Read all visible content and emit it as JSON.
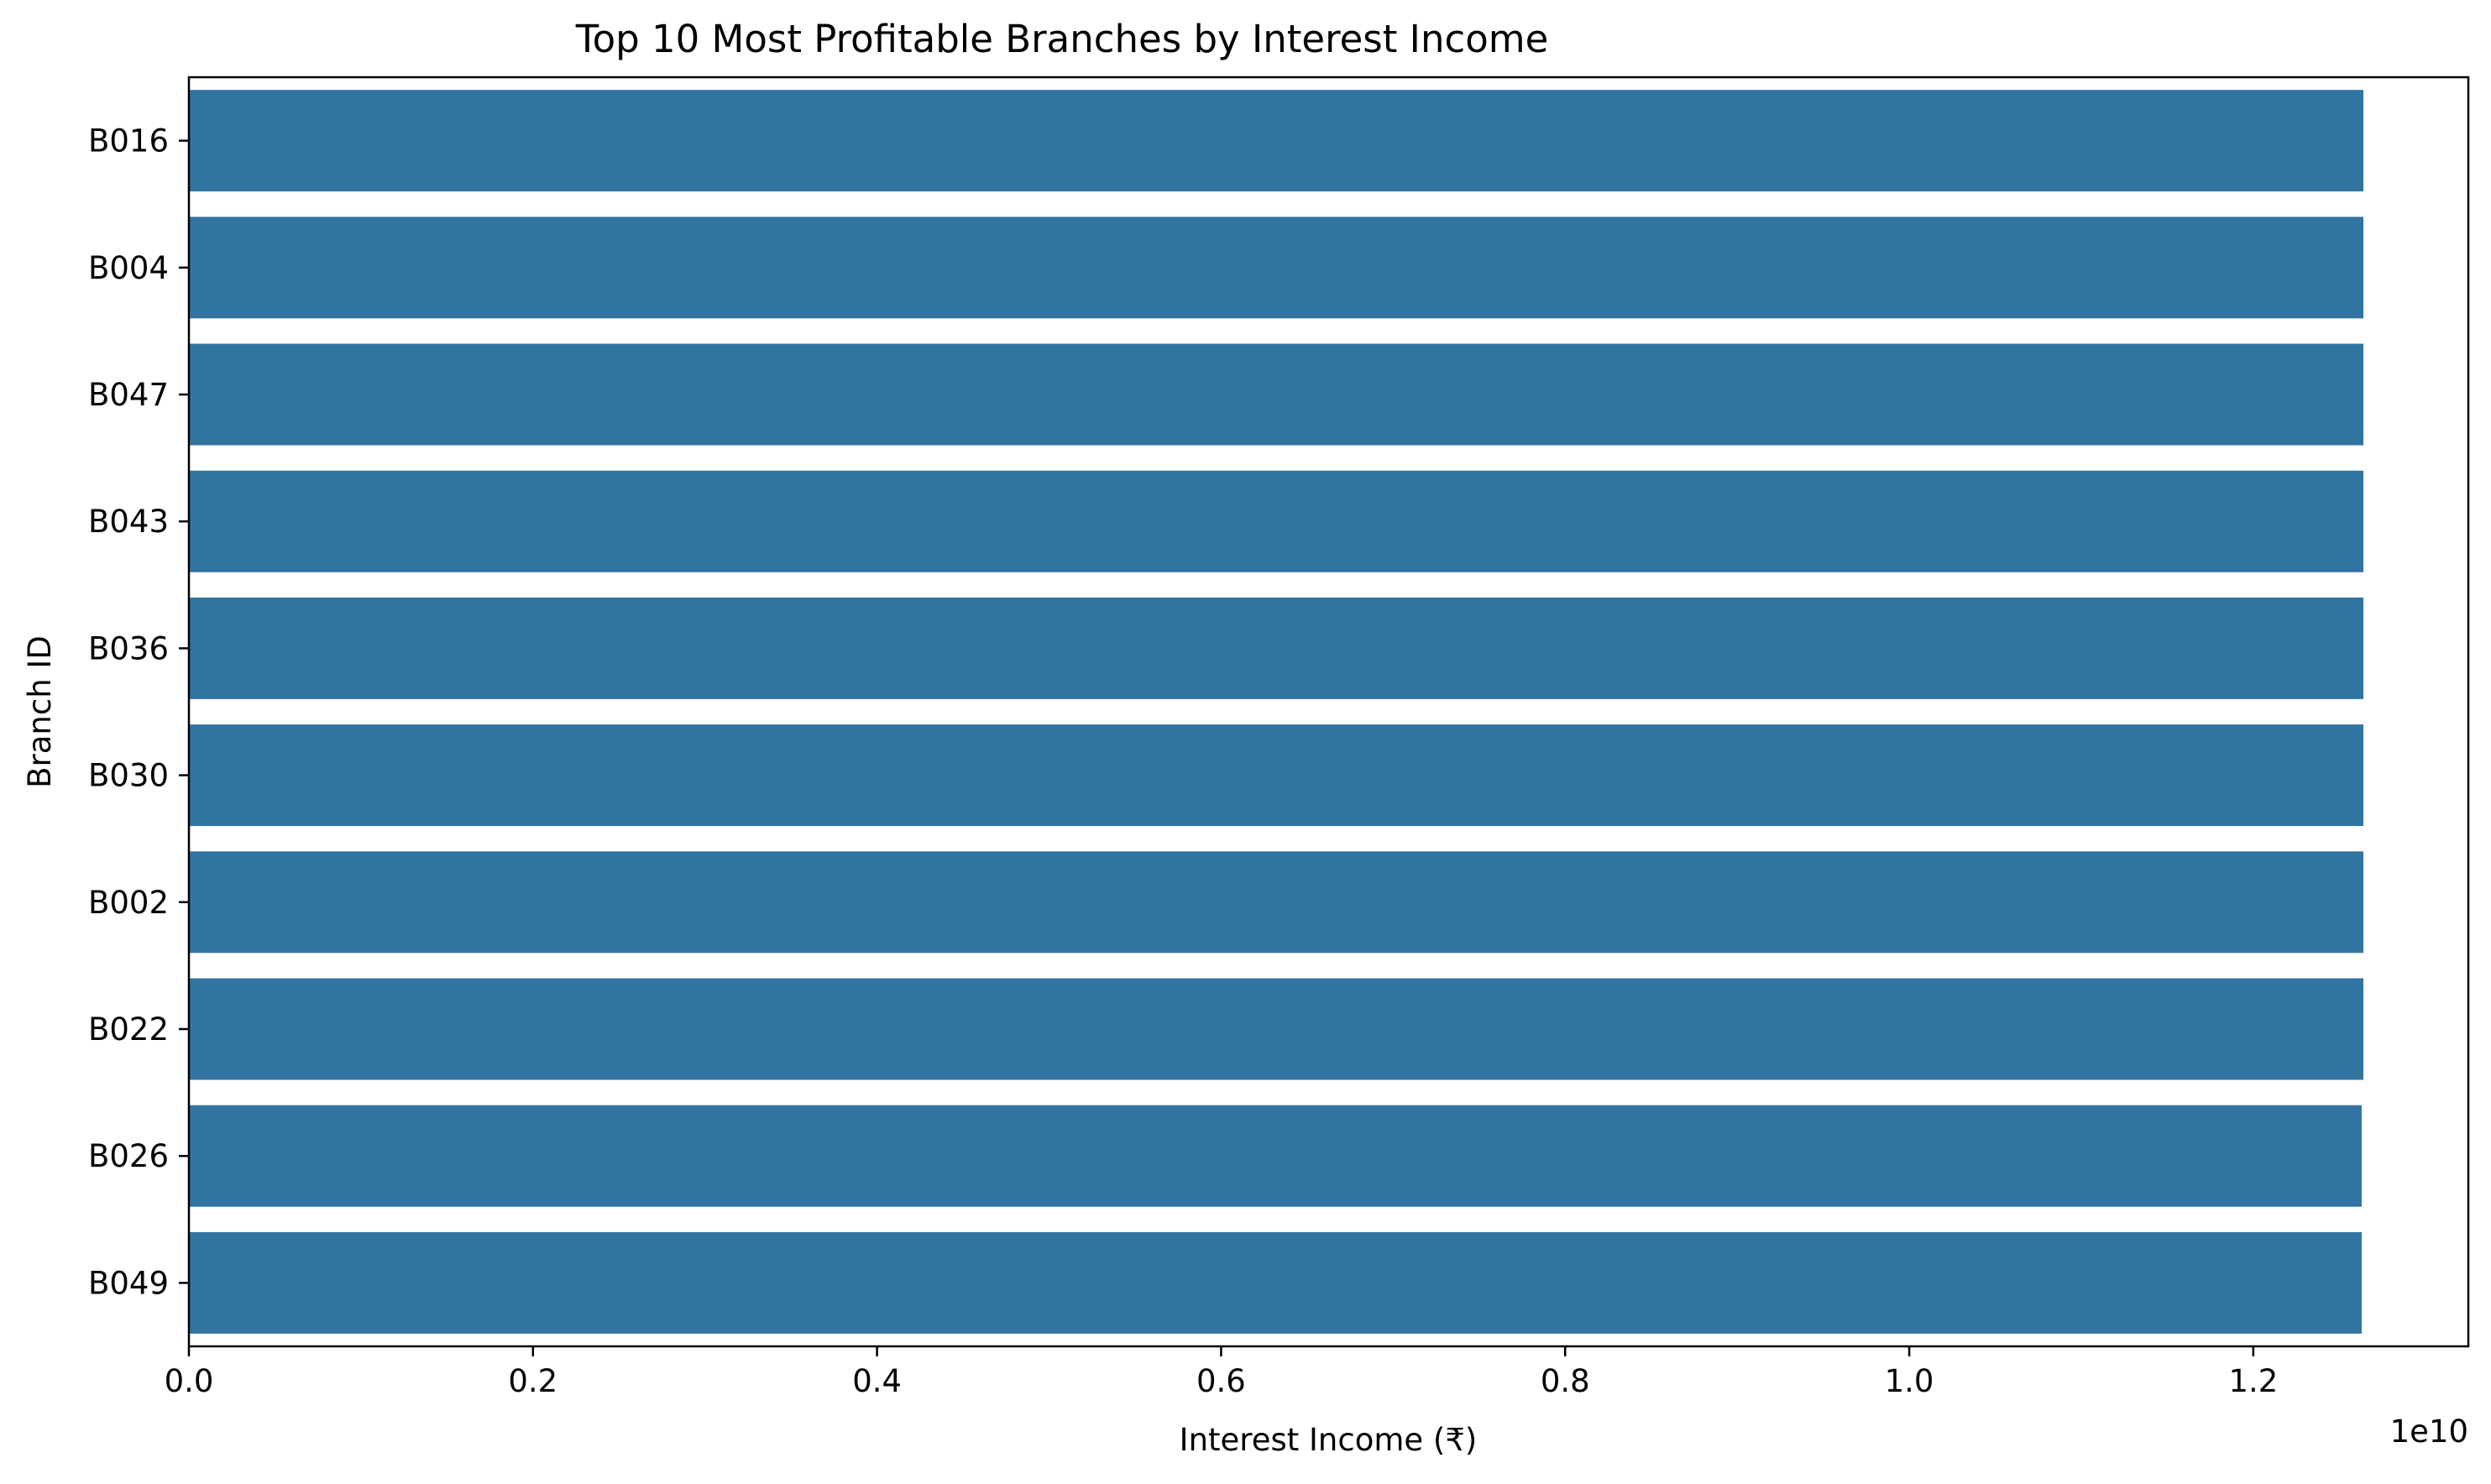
{
  "chart_data": {
    "type": "bar",
    "orientation": "horizontal",
    "title": "Top 10 Most Profitable Branches by Interest Income",
    "xlabel": "Interest Income (₹)",
    "ylabel": "Branch ID",
    "x_offset_text": "1e10",
    "x_scale_factor": 10000000000,
    "xlim": [
      0,
      13250000000
    ],
    "x_ticks": [
      0,
      2000000000,
      4000000000,
      6000000000,
      8000000000,
      10000000000,
      12000000000
    ],
    "x_tick_labels": [
      "0.0",
      "0.2",
      "0.4",
      "0.6",
      "0.8",
      "1.0",
      "1.2"
    ],
    "categories": [
      "B016",
      "B004",
      "B047",
      "B043",
      "B036",
      "B030",
      "B002",
      "B022",
      "B026",
      "B049"
    ],
    "values": [
      12640000000,
      12640000000,
      12640000000,
      12640000000,
      12640000000,
      12640000000,
      12640000000,
      12640000000,
      12630000000,
      12630000000
    ],
    "grid": false,
    "legend": "none",
    "bar_color": "#3274a1"
  }
}
